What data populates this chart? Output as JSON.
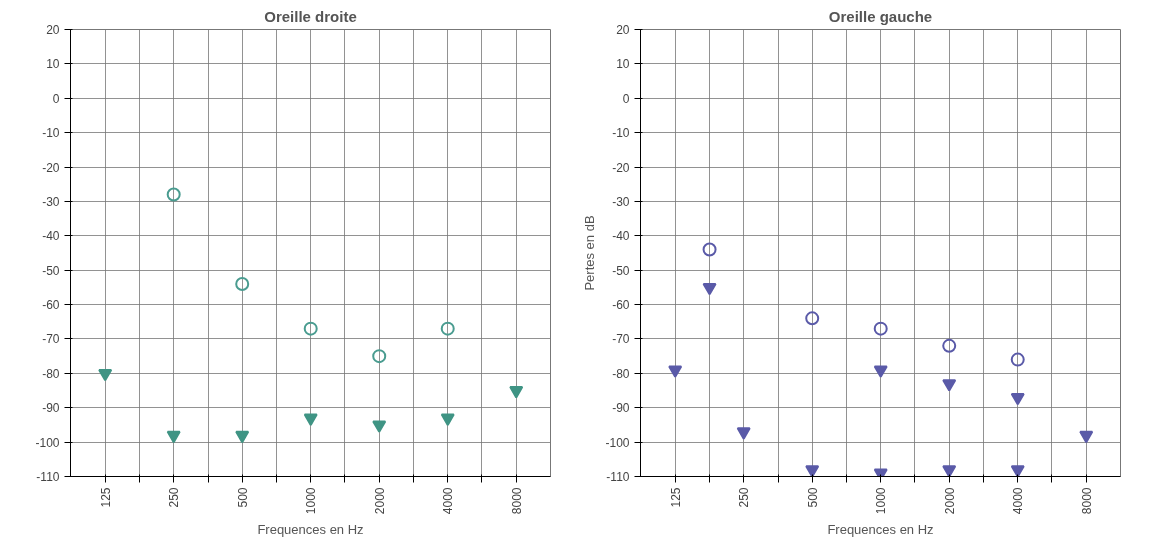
{
  "chart_data": [
    {
      "type": "scatter",
      "title": "Oreille droite",
      "xlabel": "Frequences en Hz",
      "log": "x",
      "grid": true,
      "xlim": [
        88,
        11314
      ],
      "ylim": [
        -110,
        20
      ],
      "xticks": [
        125,
        {
          "value": 177,
          "label": null
        },
        250,
        {
          "value": 354,
          "label": null
        },
        500,
        {
          "value": 707,
          "label": null
        },
        1000,
        {
          "value": 1414,
          "label": null
        },
        2000,
        {
          "value": 2828,
          "label": null
        },
        4000,
        {
          "value": 5657,
          "label": null
        },
        8000
      ],
      "yticks": [
        20,
        10,
        0,
        -10,
        -20,
        -30,
        -40,
        -50,
        -60,
        -70,
        -80,
        -90,
        -100,
        -110
      ],
      "series": [
        {
          "color": "#4a9c90",
          "marker": "circle",
          "x": [
            250,
            500,
            1000,
            2000,
            4000
          ],
          "values": [
            -28,
            -54,
            -67,
            -75,
            -67
          ]
        },
        {
          "color": "#3f9484",
          "marker": "triangle",
          "x": [
            125,
            250,
            500,
            1000,
            2000,
            4000,
            8000
          ],
          "values": [
            -80,
            -98,
            -98,
            -93,
            -95,
            -93,
            -85
          ]
        }
      ]
    },
    {
      "type": "scatter",
      "title": "Oreille gauche",
      "xlabel": "Frequences en Hz",
      "ylabel": "Pertes en dB",
      "log": "x",
      "grid": true,
      "xlim": [
        88,
        11314
      ],
      "ylim": [
        -110,
        20
      ],
      "xticks": [
        125,
        {
          "value": 177,
          "label": null
        },
        250,
        {
          "value": 354,
          "label": null
        },
        500,
        {
          "value": 707,
          "label": null
        },
        1000,
        {
          "value": 1414,
          "label": null
        },
        2000,
        {
          "value": 2828,
          "label": null
        },
        4000,
        {
          "value": 5657,
          "label": null
        },
        8000
      ],
      "yticks": [
        20,
        10,
        0,
        -10,
        -20,
        -30,
        -40,
        -50,
        -60,
        -70,
        -80,
        -90,
        -100,
        -110
      ],
      "series": [
        {
          "color": "#5a5aa8",
          "marker": "circle",
          "x": [
            177,
            500,
            1000,
            2000,
            4000
          ],
          "values": [
            -44,
            -64,
            -67,
            -72,
            -76
          ]
        },
        {
          "color": "#5a5aa8",
          "marker": "triangle",
          "x": [
            125,
            177,
            250,
            500,
            1000,
            1000,
            2000,
            2000,
            4000,
            4000,
            8000
          ],
          "values": [
            -79,
            -55,
            -97,
            -108,
            -109,
            -79,
            -108,
            -83,
            -108,
            -87,
            -98
          ]
        }
      ]
    }
  ]
}
